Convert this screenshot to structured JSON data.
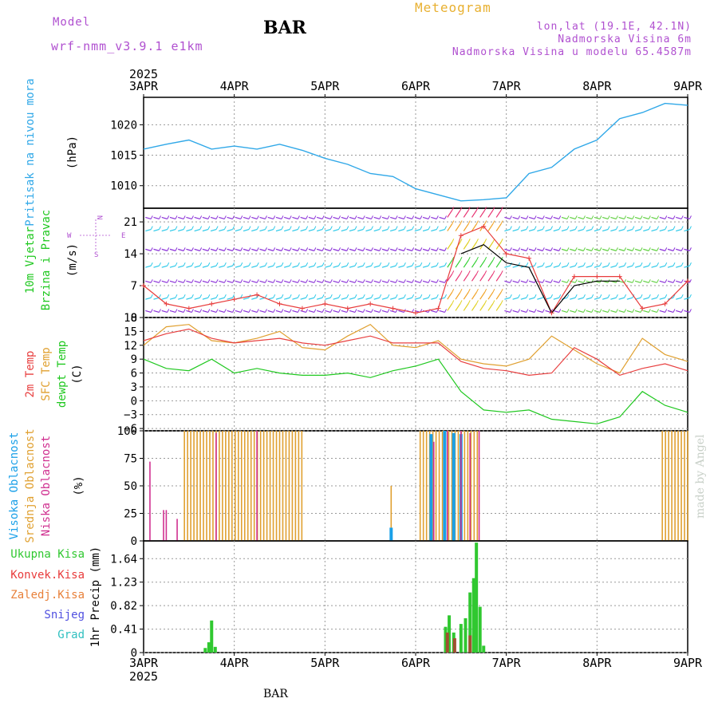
{
  "header": {
    "model_label": "Model",
    "model_name": "wrf-nmm_v3.9.1  e1km",
    "station": "BAR",
    "product": "Meteogram",
    "coords": "lon,lat (19.1E, 42.1N)",
    "elevation": "Nadmorska Visina 6m",
    "model_elevation": "Nadmorska Visina u modelu 65.4587m",
    "year": "2025",
    "footer": "BAR",
    "credit": "made by Angel"
  },
  "colors": {
    "pressure": "#30a8e8",
    "wind_low": "#28c8e8",
    "wind_mid": "#8a30d8",
    "gust": "#e83c3c",
    "temp2m": "#e84040",
    "sfc": "#e0a030",
    "dew": "#20c820",
    "cloud_high": "#1aa0e8",
    "cloud_mid": "#e0a030",
    "cloud_low": "#d03090",
    "precip_total": "#30c830",
    "precip_conv": "#a05030"
  },
  "x_axis": {
    "ticks": [
      "3APR",
      "4APR",
      "5APR",
      "6APR",
      "7APR",
      "8APR",
      "9APR"
    ]
  },
  "chart_data": [
    {
      "type": "line",
      "panel": "pressure",
      "ylabel": "Pritisak na nivou mora",
      "unit": "(hPa)",
      "yticks": [
        1010,
        1015,
        1020
      ],
      "ylim": [
        1006.3,
        1024.5
      ],
      "x": [
        0,
        0.25,
        0.5,
        0.75,
        1.0,
        1.25,
        1.5,
        1.75,
        2.0,
        2.25,
        2.5,
        2.75,
        3.0,
        3.25,
        3.5,
        3.75,
        4.0,
        4.25,
        4.5,
        4.75,
        5.0,
        5.25,
        5.5,
        5.75,
        6.0
      ],
      "series": [
        {
          "values": [
            1016,
            1016.8,
            1017.5,
            1016,
            1016.5,
            1016,
            1016.8,
            1015.8,
            1014.5,
            1013.5,
            1012,
            1011.5,
            1009.5,
            1008.5,
            1007.5,
            1007.7,
            1008,
            1012,
            1013,
            1016,
            1017.5,
            1021,
            1022,
            1023.5,
            1023.2
          ]
        }
      ]
    },
    {
      "type": "line",
      "panel": "wind",
      "ylabel": "10m Vjetar",
      "ylabel2": "Brzina i Pravac",
      "unit": "(m/s)",
      "compass": {
        "n": "N",
        "s": "S",
        "e": "E",
        "w": "W"
      },
      "yticks": [
        0,
        7,
        14,
        21
      ],
      "ylim": [
        0,
        24
      ],
      "x": [
        0,
        0.25,
        0.5,
        0.75,
        1.0,
        1.25,
        1.5,
        1.75,
        2.0,
        2.25,
        2.5,
        2.75,
        3.0,
        3.25,
        3.5,
        3.75,
        4.0,
        4.25,
        4.5,
        4.75,
        5.0,
        5.25,
        5.5,
        5.75,
        6.0
      ],
      "series": [
        {
          "name": "gust",
          "values": [
            7,
            3,
            2,
            3,
            4,
            5,
            3,
            2,
            3,
            2,
            3,
            2,
            1,
            2,
            18,
            20,
            14,
            13,
            1,
            9,
            9,
            9,
            2,
            3,
            8
          ]
        },
        {
          "name": "speed",
          "values": [
            null,
            null,
            null,
            null,
            null,
            null,
            null,
            null,
            null,
            null,
            null,
            null,
            null,
            null,
            14,
            16,
            12,
            11,
            1,
            7,
            8,
            8,
            null,
            null,
            null
          ]
        }
      ]
    },
    {
      "type": "line",
      "panel": "temperature",
      "ylabel": "2m Temp",
      "ylabel2": "SFC Temp",
      "ylabel3": "dewpt Temp",
      "unit": "(C)",
      "yticks": [
        -6,
        -3,
        0,
        3,
        6,
        9,
        12,
        15,
        18
      ],
      "ylim": [
        -6.5,
        18
      ],
      "x": [
        0,
        0.25,
        0.5,
        0.75,
        1.0,
        1.25,
        1.5,
        1.75,
        2.0,
        2.25,
        2.5,
        2.75,
        3.0,
        3.25,
        3.5,
        3.75,
        4.0,
        4.25,
        4.5,
        4.75,
        5.0,
        5.25,
        5.5,
        5.75,
        6.0
      ],
      "series": [
        {
          "name": "2m",
          "values": [
            13,
            14.5,
            15.5,
            13.5,
            12.5,
            13,
            13.5,
            12.5,
            12,
            13,
            14,
            12.5,
            12.5,
            12.5,
            8.5,
            7,
            6.5,
            5.5,
            6,
            11.5,
            9,
            5.5,
            7,
            8,
            6.5
          ]
        },
        {
          "name": "sfc",
          "values": [
            12,
            16,
            16.5,
            13,
            12.5,
            13.5,
            15,
            11.5,
            11,
            14,
            16.5,
            12,
            11.5,
            13,
            9,
            8,
            7.5,
            9,
            14,
            11,
            8,
            6,
            13.5,
            10,
            8.5
          ]
        },
        {
          "name": "dew",
          "values": [
            9,
            7,
            6.5,
            9,
            6,
            7,
            6,
            5.5,
            5.5,
            6,
            5,
            6.5,
            7.5,
            9,
            2,
            -2,
            -2.5,
            -2,
            -4,
            -4.5,
            -5,
            -3.5,
            2,
            -1,
            -2.5
          ]
        }
      ]
    },
    {
      "type": "bar",
      "panel": "clouds",
      "ylabel": "Visoka Oblacnost",
      "ylabel2": "Srednja Oblacnost",
      "ylabel3": "Niska Oblacnost",
      "unit": "(%)",
      "yticks": [
        0,
        25,
        50,
        75,
        100
      ],
      "ylim": [
        0,
        100
      ],
      "mid_segments": [
        [
          0.45,
          1.75,
          100
        ],
        [
          2.73,
          2.75,
          50
        ],
        [
          3.05,
          3.7,
          100
        ],
        [
          5.72,
          6.0,
          100
        ]
      ],
      "high_bars": [
        [
          2.73,
          12
        ],
        [
          3.17,
          97
        ],
        [
          3.32,
          100
        ],
        [
          3.42,
          98
        ],
        [
          3.5,
          97
        ]
      ],
      "low_bars": [
        [
          0.07,
          72
        ],
        [
          0.22,
          28
        ],
        [
          0.25,
          28
        ],
        [
          0.37,
          20
        ],
        [
          0.8,
          98
        ],
        [
          1.25,
          100
        ],
        [
          3.2,
          90
        ],
        [
          3.35,
          100
        ],
        [
          3.5,
          100
        ],
        [
          3.6,
          98
        ],
        [
          3.7,
          100
        ]
      ]
    },
    {
      "type": "bar",
      "panel": "precip",
      "legend": [
        "Ukupna Kisa",
        "Konvek.Kisa",
        "Zaledj.Kisa",
        "Snijeg",
        "Grad"
      ],
      "legend_colors": [
        "#30c830",
        "#e83c3c",
        "#e8803a",
        "#5050e0",
        "#30c0c0"
      ],
      "ylabel": "1hr Precip",
      "unit": "(mm)",
      "yticks": [
        0,
        0.41,
        0.82,
        1.23,
        1.64
      ],
      "ylim": [
        0,
        1.95
      ],
      "total": [
        [
          0.68,
          0.08
        ],
        [
          0.72,
          0.18
        ],
        [
          0.75,
          0.56
        ],
        [
          0.79,
          0.1
        ],
        [
          3.33,
          0.45
        ],
        [
          3.37,
          0.65
        ],
        [
          3.42,
          0.35
        ],
        [
          3.5,
          0.5
        ],
        [
          3.55,
          0.6
        ],
        [
          3.6,
          1.05
        ],
        [
          3.64,
          1.3
        ],
        [
          3.67,
          1.92
        ],
        [
          3.71,
          0.8
        ],
        [
          3.75,
          0.12
        ]
      ],
      "convective": [
        [
          3.35,
          0.35
        ],
        [
          3.43,
          0.25
        ],
        [
          3.6,
          0.3
        ]
      ]
    }
  ]
}
